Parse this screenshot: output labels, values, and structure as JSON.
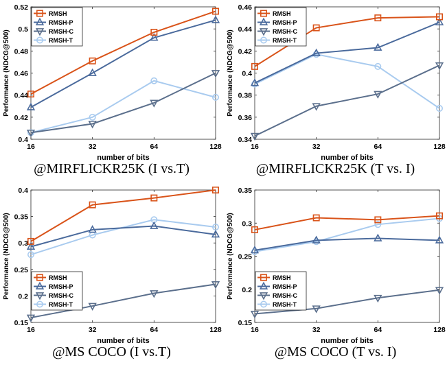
{
  "colors": {
    "RMSH": "#d95319",
    "RMSH-P": "#4a6a9c",
    "RMSH-C": "#5b6f8c",
    "RMSH-T": "#a9cbef"
  },
  "markers": {
    "RMSH": "square",
    "RMSH-P": "triangle-up",
    "RMSH-C": "triangle-down",
    "RMSH-T": "circle"
  },
  "chart_data": [
    {
      "type": "line",
      "caption": "@MIRFLICKR25K (I vs.T)",
      "xlabel": "number of bits",
      "ylabel": "Performance (NDCG@500)",
      "x": [
        16,
        32,
        64,
        128
      ],
      "xscale": "log2",
      "ylim": [
        0.4,
        0.52
      ],
      "yticks": [
        "0.4",
        "0.42",
        "0.44",
        "0.46",
        "0.48",
        "0.5",
        "0.52"
      ],
      "legend": "top-left",
      "grid": false,
      "series": [
        {
          "name": "RMSH",
          "values": [
            0.441,
            0.471,
            0.497,
            0.516
          ]
        },
        {
          "name": "RMSH-P",
          "values": [
            0.429,
            0.46,
            0.492,
            0.508
          ]
        },
        {
          "name": "RMSH-C",
          "values": [
            0.406,
            0.414,
            0.433,
            0.46
          ]
        },
        {
          "name": "RMSH-T",
          "values": [
            0.406,
            0.42,
            0.453,
            0.438
          ]
        }
      ]
    },
    {
      "type": "line",
      "caption": "@MIRFLICKR25K (T vs. I)",
      "xlabel": "number of bits",
      "ylabel": "Performance (NDCG@500)",
      "x": [
        16,
        32,
        64,
        128
      ],
      "xscale": "log2",
      "ylim": [
        0.34,
        0.46
      ],
      "yticks": [
        "0.34",
        "0.36",
        "0.38",
        "0.4",
        "0.42",
        "0.44",
        "0.46"
      ],
      "legend": "top-left",
      "grid": false,
      "series": [
        {
          "name": "RMSH",
          "values": [
            0.406,
            0.441,
            0.45,
            0.451
          ]
        },
        {
          "name": "RMSH-P",
          "values": [
            0.391,
            0.418,
            0.423,
            0.446
          ]
        },
        {
          "name": "RMSH-C",
          "values": [
            0.343,
            0.37,
            0.381,
            0.407
          ]
        },
        {
          "name": "RMSH-T",
          "values": [
            0.39,
            0.417,
            0.406,
            0.368
          ]
        }
      ]
    },
    {
      "type": "line",
      "caption": "@MS COCO (I vs.T)",
      "xlabel": "number of bits",
      "ylabel": "Performance (NDCG@500)",
      "x": [
        16,
        32,
        64,
        128
      ],
      "xscale": "log2",
      "ylim": [
        0.15,
        0.4
      ],
      "yticks": [
        "0.15",
        "0.2",
        "0.25",
        "0.3",
        "0.35",
        "0.4"
      ],
      "legend": "bottom-left",
      "grid": false,
      "series": [
        {
          "name": "RMSH",
          "values": [
            0.303,
            0.372,
            0.385,
            0.4
          ]
        },
        {
          "name": "RMSH-P",
          "values": [
            0.293,
            0.325,
            0.332,
            0.316
          ]
        },
        {
          "name": "RMSH-C",
          "values": [
            0.159,
            0.181,
            0.205,
            0.222
          ]
        },
        {
          "name": "RMSH-T",
          "values": [
            0.278,
            0.315,
            0.344,
            0.33
          ]
        }
      ]
    },
    {
      "type": "line",
      "caption": "@MS COCO (T vs. I)",
      "xlabel": "number of bits",
      "ylabel": "Performance (NDCG@500)",
      "x": [
        16,
        32,
        64,
        128
      ],
      "xscale": "log2",
      "ylim": [
        0.15,
        0.35
      ],
      "yticks": [
        "0.15",
        "0.2",
        "0.25",
        "0.3",
        "0.35"
      ],
      "legend": "bottom-left",
      "grid": false,
      "series": [
        {
          "name": "RMSH",
          "values": [
            0.29,
            0.308,
            0.305,
            0.311
          ]
        },
        {
          "name": "RMSH-P",
          "values": [
            0.259,
            0.274,
            0.277,
            0.274
          ]
        },
        {
          "name": "RMSH-C",
          "values": [
            0.163,
            0.171,
            0.187,
            0.199
          ]
        },
        {
          "name": "RMSH-T",
          "values": [
            0.257,
            0.272,
            0.298,
            0.307
          ]
        }
      ]
    }
  ]
}
